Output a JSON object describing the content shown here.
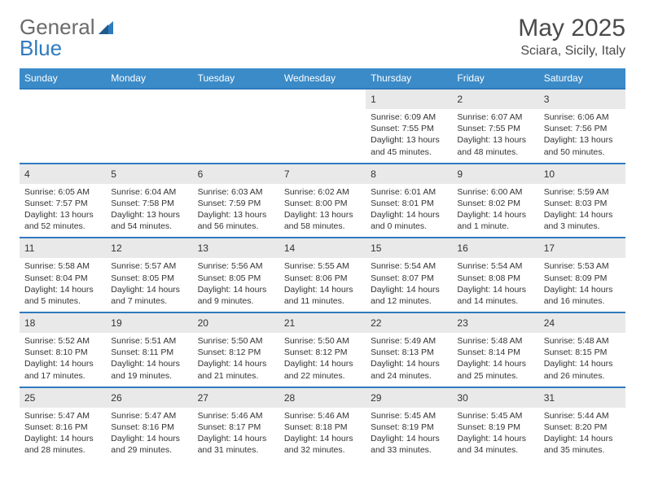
{
  "brand": {
    "text1": "General",
    "text2": "Blue"
  },
  "title": "May 2025",
  "location": "Sciara, Sicily, Italy",
  "colors": {
    "header_bg": "#3b8bc8",
    "header_text": "#ffffff",
    "accent_border": "#2f7bbf",
    "daynum_bg": "#e9e9e9",
    "logo_gray": "#6b6b6b",
    "logo_blue": "#2f7bbf"
  },
  "weekdays": [
    "Sunday",
    "Monday",
    "Tuesday",
    "Wednesday",
    "Thursday",
    "Friday",
    "Saturday"
  ],
  "weeks": [
    [
      null,
      null,
      null,
      null,
      {
        "n": "1",
        "sr": "6:09 AM",
        "ss": "7:55 PM",
        "dl": "13 hours and 45 minutes."
      },
      {
        "n": "2",
        "sr": "6:07 AM",
        "ss": "7:55 PM",
        "dl": "13 hours and 48 minutes."
      },
      {
        "n": "3",
        "sr": "6:06 AM",
        "ss": "7:56 PM",
        "dl": "13 hours and 50 minutes."
      }
    ],
    [
      {
        "n": "4",
        "sr": "6:05 AM",
        "ss": "7:57 PM",
        "dl": "13 hours and 52 minutes."
      },
      {
        "n": "5",
        "sr": "6:04 AM",
        "ss": "7:58 PM",
        "dl": "13 hours and 54 minutes."
      },
      {
        "n": "6",
        "sr": "6:03 AM",
        "ss": "7:59 PM",
        "dl": "13 hours and 56 minutes."
      },
      {
        "n": "7",
        "sr": "6:02 AM",
        "ss": "8:00 PM",
        "dl": "13 hours and 58 minutes."
      },
      {
        "n": "8",
        "sr": "6:01 AM",
        "ss": "8:01 PM",
        "dl": "14 hours and 0 minutes."
      },
      {
        "n": "9",
        "sr": "6:00 AM",
        "ss": "8:02 PM",
        "dl": "14 hours and 1 minute."
      },
      {
        "n": "10",
        "sr": "5:59 AM",
        "ss": "8:03 PM",
        "dl": "14 hours and 3 minutes."
      }
    ],
    [
      {
        "n": "11",
        "sr": "5:58 AM",
        "ss": "8:04 PM",
        "dl": "14 hours and 5 minutes."
      },
      {
        "n": "12",
        "sr": "5:57 AM",
        "ss": "8:05 PM",
        "dl": "14 hours and 7 minutes."
      },
      {
        "n": "13",
        "sr": "5:56 AM",
        "ss": "8:05 PM",
        "dl": "14 hours and 9 minutes."
      },
      {
        "n": "14",
        "sr": "5:55 AM",
        "ss": "8:06 PM",
        "dl": "14 hours and 11 minutes."
      },
      {
        "n": "15",
        "sr": "5:54 AM",
        "ss": "8:07 PM",
        "dl": "14 hours and 12 minutes."
      },
      {
        "n": "16",
        "sr": "5:54 AM",
        "ss": "8:08 PM",
        "dl": "14 hours and 14 minutes."
      },
      {
        "n": "17",
        "sr": "5:53 AM",
        "ss": "8:09 PM",
        "dl": "14 hours and 16 minutes."
      }
    ],
    [
      {
        "n": "18",
        "sr": "5:52 AM",
        "ss": "8:10 PM",
        "dl": "14 hours and 17 minutes."
      },
      {
        "n": "19",
        "sr": "5:51 AM",
        "ss": "8:11 PM",
        "dl": "14 hours and 19 minutes."
      },
      {
        "n": "20",
        "sr": "5:50 AM",
        "ss": "8:12 PM",
        "dl": "14 hours and 21 minutes."
      },
      {
        "n": "21",
        "sr": "5:50 AM",
        "ss": "8:12 PM",
        "dl": "14 hours and 22 minutes."
      },
      {
        "n": "22",
        "sr": "5:49 AM",
        "ss": "8:13 PM",
        "dl": "14 hours and 24 minutes."
      },
      {
        "n": "23",
        "sr": "5:48 AM",
        "ss": "8:14 PM",
        "dl": "14 hours and 25 minutes."
      },
      {
        "n": "24",
        "sr": "5:48 AM",
        "ss": "8:15 PM",
        "dl": "14 hours and 26 minutes."
      }
    ],
    [
      {
        "n": "25",
        "sr": "5:47 AM",
        "ss": "8:16 PM",
        "dl": "14 hours and 28 minutes."
      },
      {
        "n": "26",
        "sr": "5:47 AM",
        "ss": "8:16 PM",
        "dl": "14 hours and 29 minutes."
      },
      {
        "n": "27",
        "sr": "5:46 AM",
        "ss": "8:17 PM",
        "dl": "14 hours and 31 minutes."
      },
      {
        "n": "28",
        "sr": "5:46 AM",
        "ss": "8:18 PM",
        "dl": "14 hours and 32 minutes."
      },
      {
        "n": "29",
        "sr": "5:45 AM",
        "ss": "8:19 PM",
        "dl": "14 hours and 33 minutes."
      },
      {
        "n": "30",
        "sr": "5:45 AM",
        "ss": "8:19 PM",
        "dl": "14 hours and 34 minutes."
      },
      {
        "n": "31",
        "sr": "5:44 AM",
        "ss": "8:20 PM",
        "dl": "14 hours and 35 minutes."
      }
    ]
  ],
  "labels": {
    "sunrise": "Sunrise:",
    "sunset": "Sunset:",
    "daylight": "Daylight:"
  }
}
